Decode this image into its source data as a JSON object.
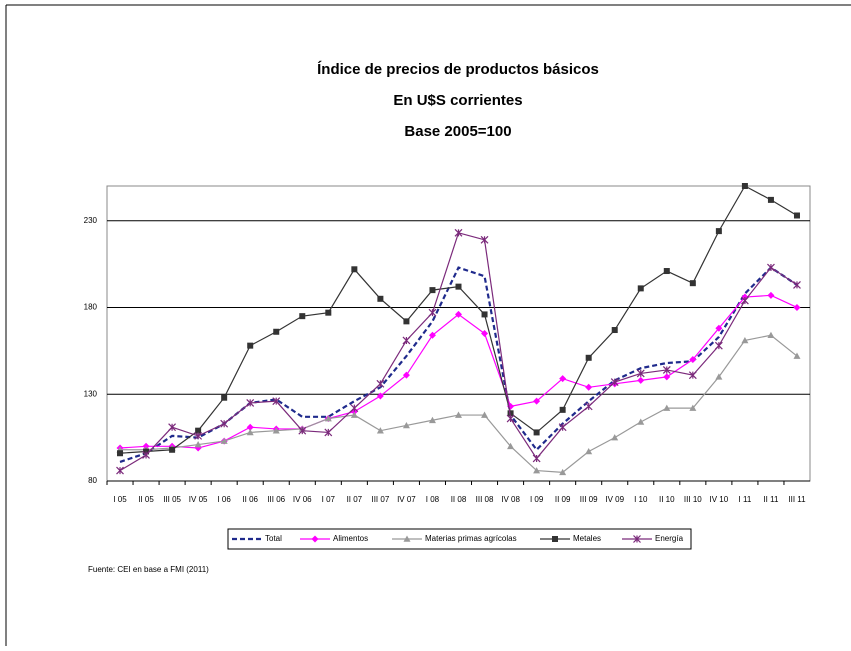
{
  "chart_data": {
    "type": "line",
    "title": "Índice de precios de productos básicos",
    "subtitle": [
      "En U$S corrientes",
      "Base 2005=100"
    ],
    "source": "Fuente: CEI en base a FMI (2011)",
    "categories": [
      "I 05",
      "II 05",
      "III 05",
      "IV 05",
      "I 06",
      "II 06",
      "III 06",
      "IV 06",
      "I 07",
      "II 07",
      "III 07",
      "IV 07",
      "I 08",
      "II 08",
      "III 08",
      "IV 08",
      "I 09",
      "II 09",
      "III 09",
      "IV 09",
      "I 10",
      "II 10",
      "III 10",
      "IV 10",
      "I 11",
      "II 11",
      "III 11"
    ],
    "series": [
      {
        "name": "Total",
        "color": "#1f2a8c",
        "marker": "none",
        "dashed": true,
        "values": [
          91,
          96,
          106,
          105,
          113,
          125,
          127,
          117,
          117,
          126,
          134,
          152,
          172,
          203,
          198,
          118,
          98,
          113,
          126,
          138,
          145,
          148,
          149,
          163,
          188,
          203,
          193
        ]
      },
      {
        "name": "Alimentos",
        "color": "#ff00ff",
        "marker": "diamond",
        "dashed": false,
        "values": [
          99,
          100,
          100,
          99,
          103,
          111,
          110,
          110,
          116,
          120,
          129,
          141,
          164,
          176,
          165,
          123,
          126,
          139,
          134,
          136,
          138,
          140,
          150,
          168,
          186,
          187,
          180
        ]
      },
      {
        "name": "Materias primas agrícolas",
        "color": "#999999",
        "marker": "triangle",
        "dashed": false,
        "values": [
          98,
          98,
          99,
          101,
          103,
          108,
          109,
          110,
          116,
          118,
          109,
          112,
          115,
          118,
          118,
          100,
          86,
          85,
          97,
          105,
          114,
          122,
          122,
          140,
          161,
          164,
          152
        ]
      },
      {
        "name": "Metales",
        "color": "#333333",
        "marker": "square",
        "dashed": false,
        "values": [
          96,
          97,
          98,
          109,
          128,
          158,
          166,
          175,
          177,
          202,
          185,
          172,
          190,
          192,
          176,
          119,
          108,
          121,
          151,
          167,
          191,
          201,
          194,
          224,
          250,
          242,
          233
        ]
      },
      {
        "name": "Energía",
        "color": "#7b2a7b",
        "marker": "star",
        "dashed": false,
        "values": [
          86,
          95,
          111,
          106,
          113,
          125,
          126,
          109,
          108,
          122,
          136,
          161,
          177,
          223,
          219,
          116,
          93,
          111,
          123,
          137,
          142,
          144,
          141,
          158,
          184,
          203,
          193
        ]
      }
    ],
    "ylim": [
      80,
      250
    ],
    "yticks": [
      80,
      130,
      180,
      230
    ],
    "grid": true,
    "legend": "bottom"
  }
}
